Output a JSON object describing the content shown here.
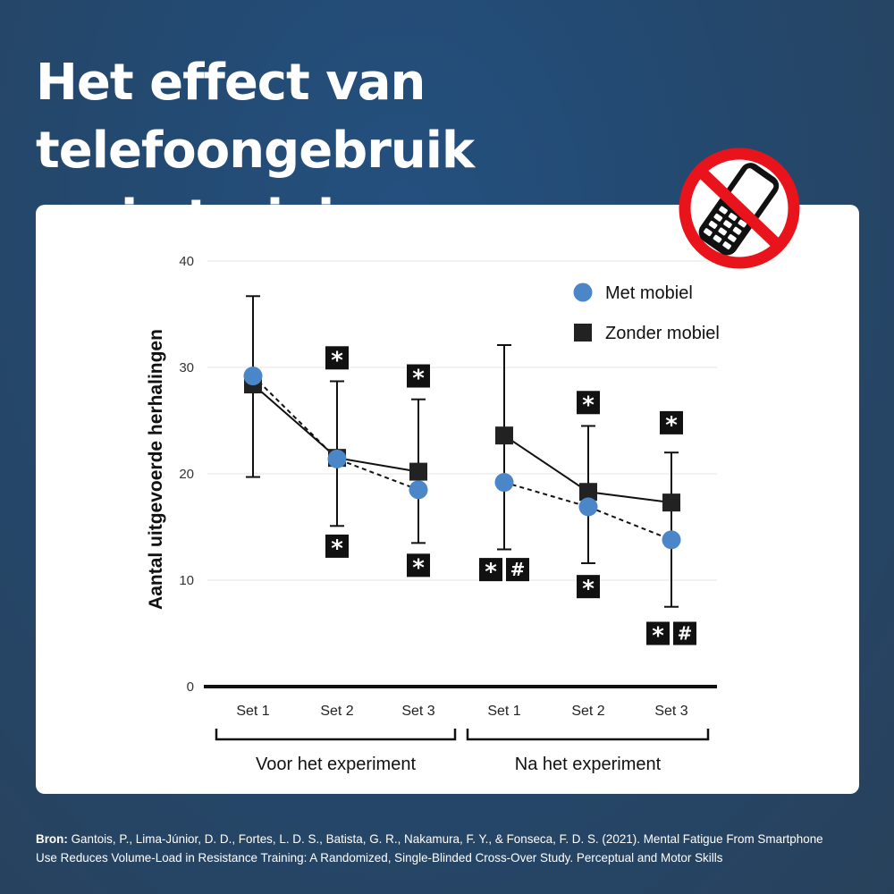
{
  "title_line1": "Het effect van telefoongebruik",
  "title_line2": "op je training",
  "chart_data": {
    "type": "line",
    "title": "",
    "ylabel": "Aantal uitgevoerde herhalingen",
    "xlabel": "",
    "ylim": [
      0,
      40
    ],
    "yticks": [
      0,
      10,
      20,
      30,
      40
    ],
    "categories": [
      "Set 1",
      "Set 2",
      "Set 3",
      "Set 1",
      "Set 2",
      "Set 3"
    ],
    "groups": [
      {
        "label": "Voor het experiment",
        "categories": [
          0,
          1,
          2
        ]
      },
      {
        "label": "Na het experiment",
        "categories": [
          3,
          4,
          5
        ]
      }
    ],
    "series": [
      {
        "name": "Met mobiel",
        "marker": "circle",
        "line": "dashed",
        "color": "#4a86c8",
        "values": [
          29.2,
          21.4,
          18.5,
          19.2,
          16.9,
          13.8
        ],
        "error_low": [
          19.7,
          15.1,
          13.5,
          12.9,
          11.6,
          7.5
        ],
        "error_high": [
          36.7,
          28.7,
          27.0,
          32.1,
          24.5,
          22.0
        ]
      },
      {
        "name": "Zonder mobiel",
        "marker": "square",
        "line": "solid",
        "color": "#222222",
        "values": [
          28.4,
          21.5,
          20.2,
          23.6,
          18.3,
          17.3
        ]
      }
    ],
    "annotations": [
      {
        "category": 1,
        "y": 30.9,
        "symbols": [
          "*"
        ]
      },
      {
        "category": 1,
        "y": 13.2,
        "symbols": [
          "*"
        ]
      },
      {
        "category": 2,
        "y": 29.2,
        "symbols": [
          "*"
        ]
      },
      {
        "category": 2,
        "y": 11.4,
        "symbols": [
          "*"
        ]
      },
      {
        "category": 3,
        "y": 11.0,
        "symbols": [
          "*",
          "#"
        ]
      },
      {
        "category": 4,
        "y": 26.7,
        "symbols": [
          "*"
        ]
      },
      {
        "category": 4,
        "y": 9.4,
        "symbols": [
          "*"
        ]
      },
      {
        "category": 5,
        "y": 24.8,
        "symbols": [
          "*"
        ]
      },
      {
        "category": 5,
        "y": 5.0,
        "symbols": [
          "*",
          "#"
        ]
      }
    ],
    "legend_position": "top-right",
    "grid": true
  },
  "icon": "no-phone-icon",
  "source": {
    "label": "Bron:",
    "text": "Gantois, P., Lima-Júnior, D. D., Fortes, L. D. S., Batista, G. R., Nakamura, F. Y., & Fonseca, F. D. S. (2021). Mental Fatigue From Smartphone Use Reduces Volume-Load in Resistance Training: A Randomized, Single-Blinded Cross-Over Study. Perceptual and Motor Skills"
  }
}
